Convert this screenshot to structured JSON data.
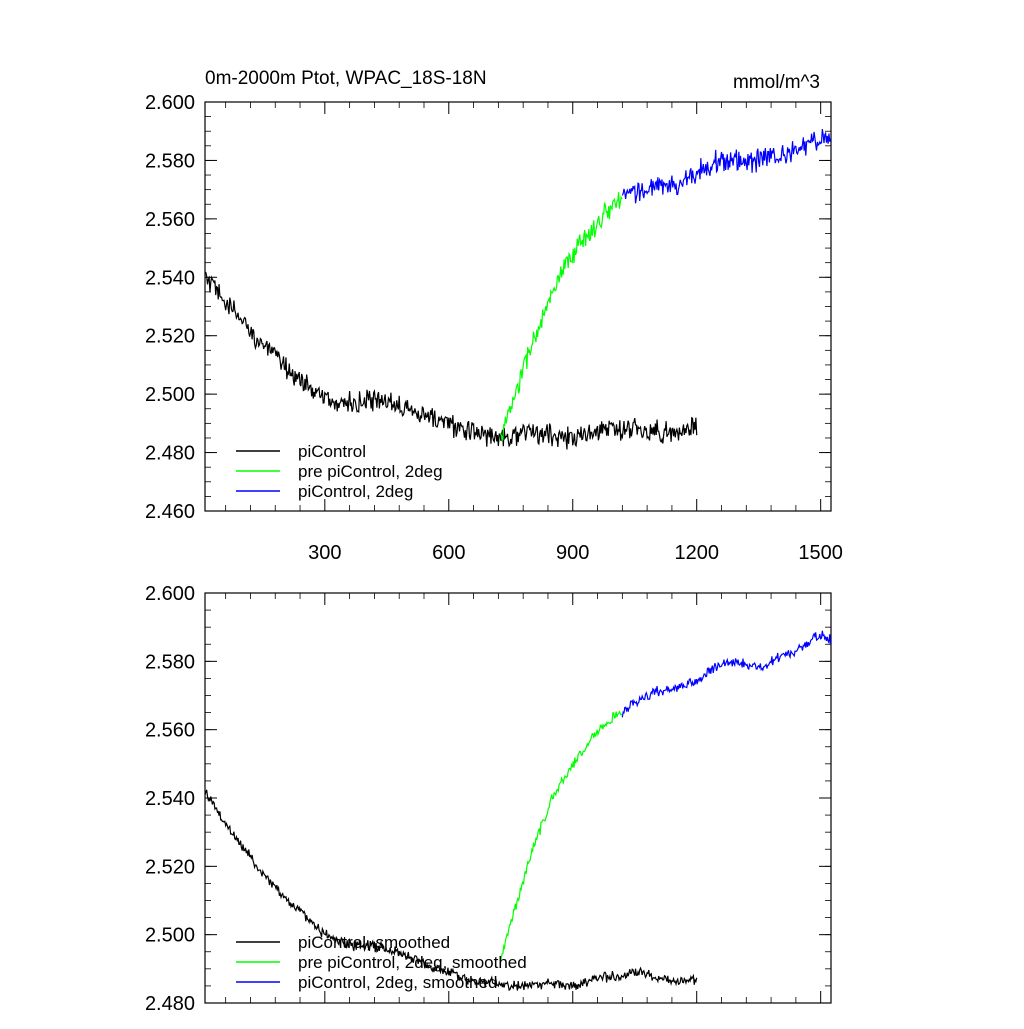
{
  "chart_data": [
    {
      "type": "line",
      "title": "0m-2000m Ptot, WPAC_18S-18N",
      "units": "mmol/m^3",
      "xlim": [
        10,
        1525
      ],
      "ylim": [
        2.46,
        2.6
      ],
      "xticks": [
        300,
        600,
        900,
        1200,
        1500
      ],
      "xtick_labels": [
        "300",
        "600",
        "900",
        "1200",
        "1500"
      ],
      "yticks": [
        2.46,
        2.48,
        2.5,
        2.52,
        2.54,
        2.56,
        2.58,
        2.6
      ],
      "ytick_labels": [
        "2.460",
        "2.480",
        "2.500",
        "2.520",
        "2.540",
        "2.560",
        "2.580",
        "2.600"
      ],
      "grid": false,
      "legend_position": "bottom-left",
      "series": [
        {
          "name": "piControl",
          "color": "#000000",
          "noise": 0.003,
          "x": [
            10,
            50,
            100,
            150,
            200,
            250,
            300,
            350,
            400,
            450,
            500,
            550,
            600,
            650,
            700,
            750,
            800,
            850,
            900,
            950,
            1000,
            1050,
            1100,
            1150,
            1200
          ],
          "y": [
            2.54,
            2.533,
            2.525,
            2.517,
            2.51,
            2.504,
            2.498,
            2.497,
            2.497,
            2.498,
            2.496,
            2.492,
            2.49,
            2.487,
            2.486,
            2.486,
            2.487,
            2.486,
            2.485,
            2.487,
            2.488,
            2.488,
            2.487,
            2.487,
            2.489
          ]
        },
        {
          "name": "pre piControl, 2deg",
          "color": "#00ff00",
          "noise": 0.003,
          "x": [
            725,
            750,
            775,
            800,
            825,
            850,
            875,
            900,
            925,
            950,
            975,
            1000,
            1020
          ],
          "y": [
            2.485,
            2.495,
            2.506,
            2.517,
            2.525,
            2.534,
            2.541,
            2.548,
            2.553,
            2.557,
            2.561,
            2.565,
            2.567
          ]
        },
        {
          "name": "piControl, 2deg",
          "color": "#0000ff",
          "noise": 0.003,
          "x": [
            1020,
            1050,
            1100,
            1150,
            1200,
            1250,
            1300,
            1350,
            1400,
            1450,
            1500,
            1525
          ],
          "y": [
            2.567,
            2.569,
            2.571,
            2.571,
            2.576,
            2.58,
            2.58,
            2.58,
            2.582,
            2.584,
            2.588,
            2.587
          ]
        }
      ]
    },
    {
      "type": "line",
      "xlim": [
        10,
        1525
      ],
      "ylim": [
        2.48,
        2.6
      ],
      "xticks": [
        300,
        600,
        900,
        1200,
        1500
      ],
      "yticks": [
        2.48,
        2.5,
        2.52,
        2.54,
        2.56,
        2.58,
        2.6
      ],
      "ytick_labels": [
        "2.480",
        "2.500",
        "2.520",
        "2.540",
        "2.560",
        "2.580",
        "2.600"
      ],
      "grid": false,
      "legend_position": "bottom-left",
      "series": [
        {
          "name": "piControl, smoothed",
          "color": "#000000",
          "noise": 0.0012,
          "x": [
            10,
            50,
            100,
            150,
            200,
            250,
            300,
            350,
            400,
            450,
            500,
            550,
            600,
            650,
            700,
            750,
            800,
            850,
            900,
            950,
            1000,
            1050,
            1100,
            1150,
            1200
          ],
          "y": [
            2.542,
            2.534,
            2.526,
            2.518,
            2.511,
            2.506,
            2.5,
            2.497,
            2.497,
            2.496,
            2.494,
            2.491,
            2.489,
            2.487,
            2.486,
            2.485,
            2.485,
            2.486,
            2.485,
            2.487,
            2.488,
            2.489,
            2.488,
            2.486,
            2.487
          ]
        },
        {
          "name": "pre piControl, 2deg, smoothed",
          "color": "#00ff00",
          "noise": 0.0012,
          "x": [
            725,
            750,
            775,
            800,
            825,
            850,
            875,
            900,
            925,
            950,
            975,
            1000,
            1020
          ],
          "y": [
            2.493,
            2.503,
            2.514,
            2.524,
            2.532,
            2.54,
            2.545,
            2.55,
            2.554,
            2.558,
            2.561,
            2.564,
            2.565
          ]
        },
        {
          "name": "piControl, 2deg, smoothed",
          "color": "#0000ff",
          "noise": 0.0012,
          "x": [
            1020,
            1050,
            1100,
            1150,
            1200,
            1250,
            1300,
            1350,
            1400,
            1450,
            1500,
            1525
          ],
          "y": [
            2.565,
            2.568,
            2.571,
            2.572,
            2.574,
            2.579,
            2.58,
            2.578,
            2.581,
            2.584,
            2.588,
            2.586
          ]
        }
      ]
    }
  ]
}
